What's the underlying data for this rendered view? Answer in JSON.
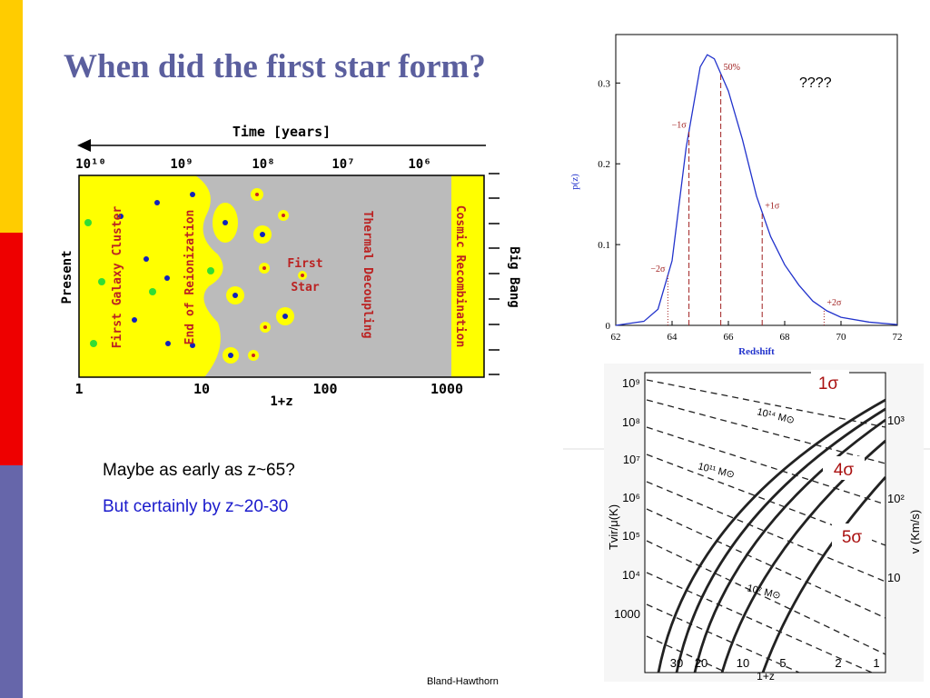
{
  "title": "When did the first star form?",
  "bullets": [
    "Maybe as early as z~65?",
    "But certainly by z~20-30"
  ],
  "question": "????",
  "credit": "Bland-Hawthorn",
  "timeline": {
    "axis_title": "Time [years]",
    "time_ticks": [
      "10¹⁰",
      "10⁹",
      "10⁸",
      "10⁷",
      "10⁶"
    ],
    "z_ticks": [
      "1",
      "10",
      "100",
      "1000"
    ],
    "xlabel": "1+z",
    "left_label": "Present",
    "right_label": "Big Bang",
    "labels": [
      "First Galaxy Cluster",
      "End of Reionization",
      "First",
      "Star",
      "Thermal Decoupling",
      "Cosmic Recombination"
    ]
  },
  "chart_data": {
    "type": "line",
    "xlabel": "Redshift",
    "ylabel": "p(z)",
    "color": "#2233cc",
    "x": [
      62,
      63,
      63.5,
      64,
      64.5,
      65,
      65.25,
      65.5,
      66,
      66.5,
      67,
      67.5,
      68,
      68.5,
      69,
      69.5,
      70,
      71,
      72
    ],
    "values": [
      0,
      0.005,
      0.02,
      0.08,
      0.22,
      0.32,
      0.335,
      0.33,
      0.29,
      0.23,
      0.16,
      0.11,
      0.075,
      0.05,
      0.03,
      0.018,
      0.01,
      0.004,
      0.001
    ],
    "xlim": [
      62,
      72
    ],
    "xticks": [
      62,
      64,
      66,
      68,
      70,
      72
    ],
    "ylim": [
      0,
      0.36
    ],
    "yticks": [
      0,
      0.1,
      0.2,
      0.3
    ],
    "markers": [
      {
        "label": "−2σ",
        "x": 63.85
      },
      {
        "label": "−1σ",
        "x": 64.6
      },
      {
        "label": "50%",
        "x": 65.73
      },
      {
        "label": "+1σ",
        "x": 67.2
      },
      {
        "label": "+2σ",
        "x": 69.4
      }
    ]
  },
  "halo": {
    "left_ticks": [
      "10⁹",
      "10⁸",
      "10⁷",
      "10⁶",
      "10⁵",
      "10⁴",
      "1000"
    ],
    "right_ticks": [
      "10³",
      "10²",
      "10"
    ],
    "bottom_ticks": [
      "30",
      "20",
      "10",
      "5",
      "2",
      "1"
    ],
    "xlabel": "1+z",
    "ylabel": "Tvir/μ(K)",
    "right_label": "v (Km/s)",
    "masses": [
      "10¹⁴ M⊙",
      "10¹¹ M⊙",
      "10⁷ M⊙"
    ],
    "sigmas": [
      "1σ",
      "4σ",
      "5σ"
    ]
  }
}
